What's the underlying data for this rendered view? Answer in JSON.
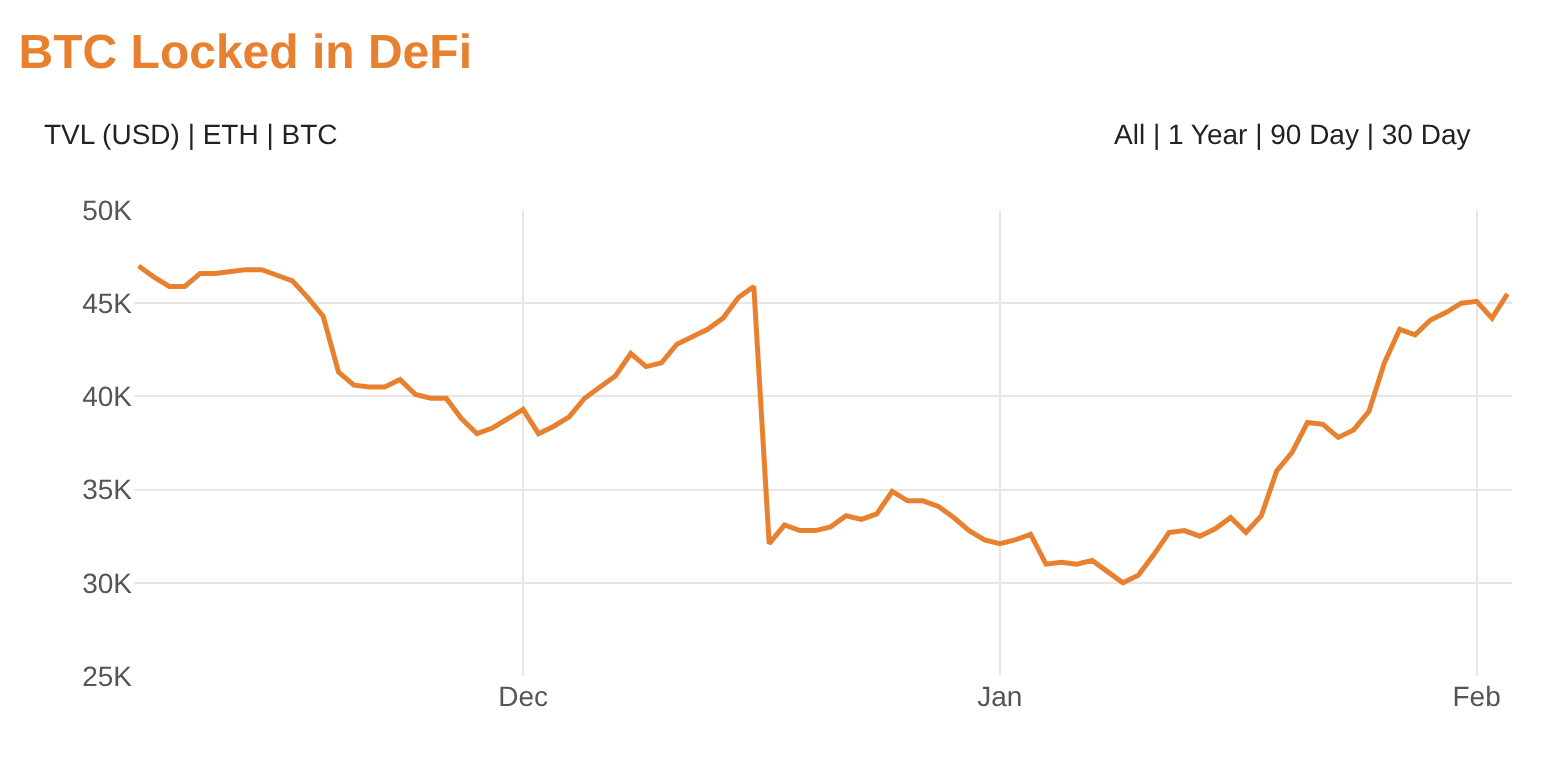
{
  "chart_data": {
    "type": "line",
    "title": "BTC Locked in DeFi",
    "annotations": [
      "TVL (USD) | ETH | BTC",
      "All | 1 Year | 90 Day | 30 Day"
    ],
    "categories": [
      null,
      null,
      null,
      null,
      null,
      null,
      null,
      null,
      null,
      null,
      null,
      null,
      null,
      null,
      null,
      null,
      null,
      null,
      null,
      null,
      null,
      null,
      null,
      null,
      null,
      "Dec",
      null,
      null,
      null,
      null,
      null,
      null,
      null,
      null,
      null,
      null,
      null,
      null,
      null,
      null,
      null,
      null,
      null,
      null,
      null,
      null,
      null,
      null,
      null,
      null,
      null,
      null,
      null,
      null,
      null,
      null,
      "Jan",
      null,
      null,
      null,
      null,
      null,
      null,
      null,
      null,
      null,
      null,
      null,
      null,
      null,
      null,
      null,
      null,
      null,
      null,
      null,
      null,
      null,
      null,
      null,
      null,
      null,
      null,
      null,
      null,
      null,
      null,
      "Feb",
      null,
      null
    ],
    "series": [
      {
        "color": "#e8812f",
        "values": [
          47000,
          46400,
          45900,
          45900,
          46600,
          46600,
          46700,
          46800,
          46800,
          46500,
          46200,
          45300,
          44300,
          41300,
          40600,
          40500,
          40500,
          40900,
          40100,
          39900,
          39900,
          38800,
          38000,
          38300,
          38800,
          39300,
          38000,
          38400,
          38900,
          39900,
          40500,
          41100,
          42300,
          41600,
          41800,
          42800,
          43200,
          43600,
          44200,
          45300,
          45900,
          32100,
          33100,
          32800,
          32800,
          33000,
          33600,
          33400,
          33700,
          34900,
          34400,
          34400,
          34100,
          33500,
          32800,
          32300,
          32100,
          32300,
          32600,
          31000,
          31100,
          31000,
          31200,
          30600,
          30000,
          30400,
          31500,
          32700,
          32800,
          32500,
          32900,
          33500,
          32700,
          33600,
          36000,
          37000,
          38600,
          38500,
          37800,
          38200,
          39200,
          41800,
          43600,
          43300,
          44100,
          44500,
          45000,
          45100,
          44200,
          45500
        ]
      }
    ],
    "ylim": [
      25000,
      50000
    ],
    "yticks": [
      {
        "value": 25000,
        "label": "25K"
      },
      {
        "value": 30000,
        "label": "30K"
      },
      {
        "value": 35000,
        "label": "35K"
      },
      {
        "value": 40000,
        "label": "40K"
      },
      {
        "value": 45000,
        "label": "45K"
      },
      {
        "value": 50000,
        "label": "50K"
      }
    ],
    "grid": true,
    "marker": "none",
    "line_style": "solid"
  }
}
